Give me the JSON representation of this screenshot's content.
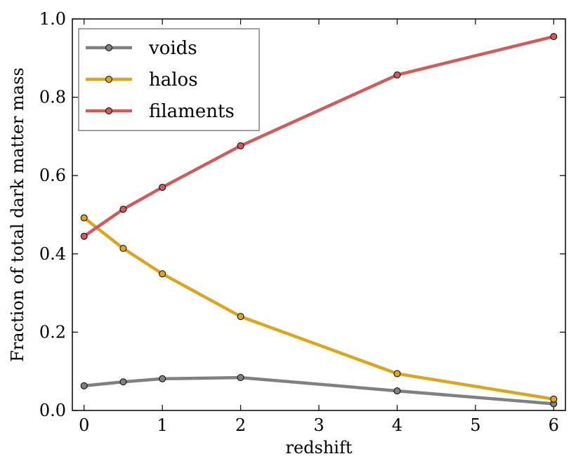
{
  "chart_data": {
    "type": "line",
    "title": "",
    "xlabel": "redshift",
    "ylabel": "Fraction of total dark matter mass",
    "xlim": [
      -0.15,
      6.15
    ],
    "ylim": [
      0.0,
      1.0
    ],
    "xticks": [
      0,
      1,
      2,
      3,
      4,
      5,
      6
    ],
    "xtick_labels": [
      "0",
      "1",
      "2",
      "3",
      "4",
      "5",
      "6"
    ],
    "yticks": [
      0.0,
      0.2,
      0.4,
      0.6,
      0.8,
      1.0
    ],
    "ytick_labels": [
      "0.0",
      "0.2",
      "0.4",
      "0.6",
      "0.8",
      "1.0"
    ],
    "grid": false,
    "legend_position": "top-left",
    "x": [
      0,
      0.5,
      1,
      2,
      4,
      6
    ],
    "series": [
      {
        "name": "voids",
        "color": "#808080",
        "values": [
          0.063,
          0.073,
          0.081,
          0.084,
          0.05,
          0.017
        ]
      },
      {
        "name": "halos",
        "color": "#daa520",
        "values": [
          0.492,
          0.414,
          0.349,
          0.24,
          0.094,
          0.029
        ]
      },
      {
        "name": "filaments",
        "color": "#cd5c5c",
        "values": [
          0.445,
          0.514,
          0.57,
          0.676,
          0.857,
          0.955
        ]
      }
    ]
  }
}
